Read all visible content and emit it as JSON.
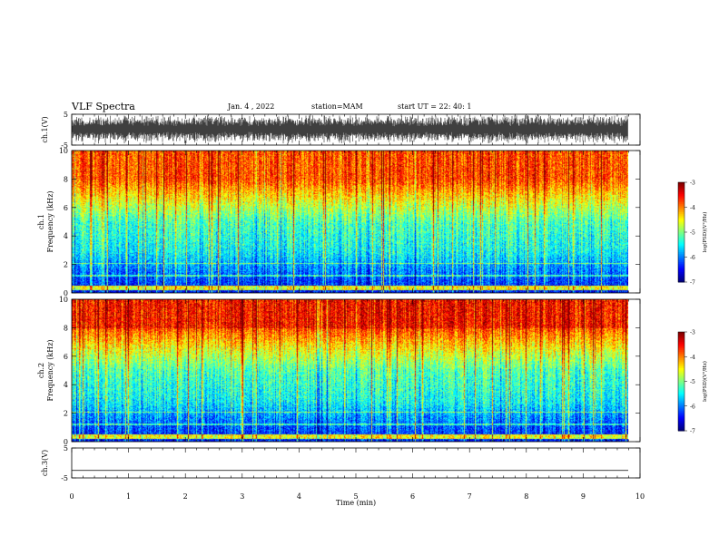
{
  "header": {
    "title": "VLF Spectra",
    "date": "Jan. 4 , 2022",
    "station": "station=MAM",
    "start_ut": "start UT =  22: 40: 1"
  },
  "colors": {
    "background": "#ffffff",
    "axis": "#000000",
    "waveform": "#000000"
  },
  "chart_data": [
    {
      "type": "line",
      "panel": "ch1-waveform",
      "ylabel": "ch.1(V)",
      "ylim": [
        -5,
        5
      ],
      "yticks": [
        "5",
        "-5"
      ],
      "xlim": [
        0,
        10
      ],
      "description": "dense broadband waveform filling roughly -5 to 5 V"
    },
    {
      "type": "heatmap",
      "panel": "ch1-spectrogram",
      "ylabel": "ch.1 Frequency (kHz)",
      "ylim": [
        0,
        10
      ],
      "yticks": [
        "0",
        "2",
        "4",
        "6",
        "8",
        "10"
      ],
      "xlim": [
        0,
        10
      ],
      "colorbar": {
        "label": "log(PSD)(V²/Hz)",
        "range": [
          -7,
          -3
        ],
        "ticks": [
          "-3",
          "-4",
          "-5",
          "-6",
          "-7"
        ]
      }
    },
    {
      "type": "heatmap",
      "panel": "ch2-spectrogram",
      "ylabel": "ch.2 Frequency (kHz)",
      "ylim": [
        0,
        10
      ],
      "yticks": [
        "0",
        "2",
        "4",
        "6",
        "8",
        "10"
      ],
      "xlim": [
        0,
        10
      ],
      "colorbar": {
        "label": "log(PSD)(V²/Hz)",
        "range": [
          -7,
          -3
        ],
        "ticks": [
          "-3",
          "-4",
          "-5",
          "-6",
          "-7"
        ]
      }
    },
    {
      "type": "line",
      "panel": "ch3-waveform",
      "ylabel": "ch.3(V)",
      "ylim": [
        -5,
        5
      ],
      "yticks": [
        "5",
        "-5"
      ],
      "xlim": [
        0,
        10
      ],
      "description": "flat line at about -2.5 V"
    }
  ],
  "xaxis": {
    "label": "Time (min)",
    "ticks": [
      "0",
      "1",
      "2",
      "3",
      "4",
      "5",
      "6",
      "7",
      "8",
      "9",
      "10"
    ]
  }
}
